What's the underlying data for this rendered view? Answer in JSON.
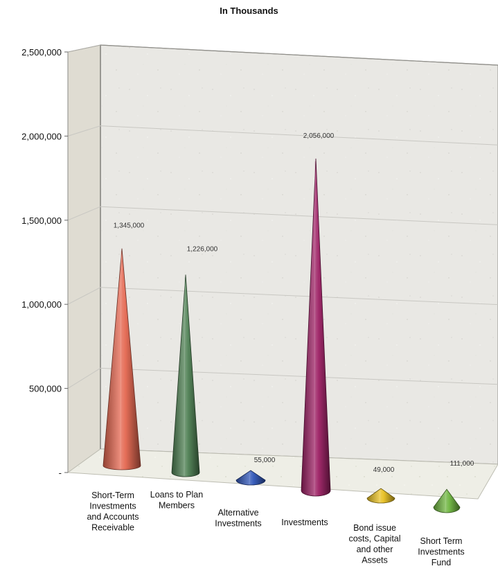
{
  "chart_data": {
    "type": "bar",
    "title": "In Thousands",
    "xlabel": "",
    "ylabel": "",
    "ylim": [
      0,
      2500000
    ],
    "yticks": [
      "2,500,000",
      "2,000,000",
      "1,500,000",
      "1,000,000",
      "500,000",
      "-"
    ],
    "grid": true,
    "categories": [
      [
        "Short-Term",
        "Investments",
        "and Accounts",
        "Receivable"
      ],
      [
        "Loans to Plan",
        "Members"
      ],
      [
        "Alternative",
        "Investments"
      ],
      [
        "Investments"
      ],
      [
        "Bond issue",
        "costs, Capital",
        "and other",
        "Assets"
      ],
      [
        "Short Term",
        "Investments",
        "Fund"
      ]
    ],
    "values": [
      1345000,
      1226000,
      55000,
      2056000,
      49000,
      111000
    ],
    "data_labels": [
      "1,345,000",
      "1,226,000",
      "55,000",
      "2,056,000",
      "49,000",
      "111,000"
    ],
    "colors": [
      "#e4664f",
      "#4d7f52",
      "#2f55b8",
      "#9c1f63",
      "#e8c021",
      "#6db43e"
    ]
  }
}
